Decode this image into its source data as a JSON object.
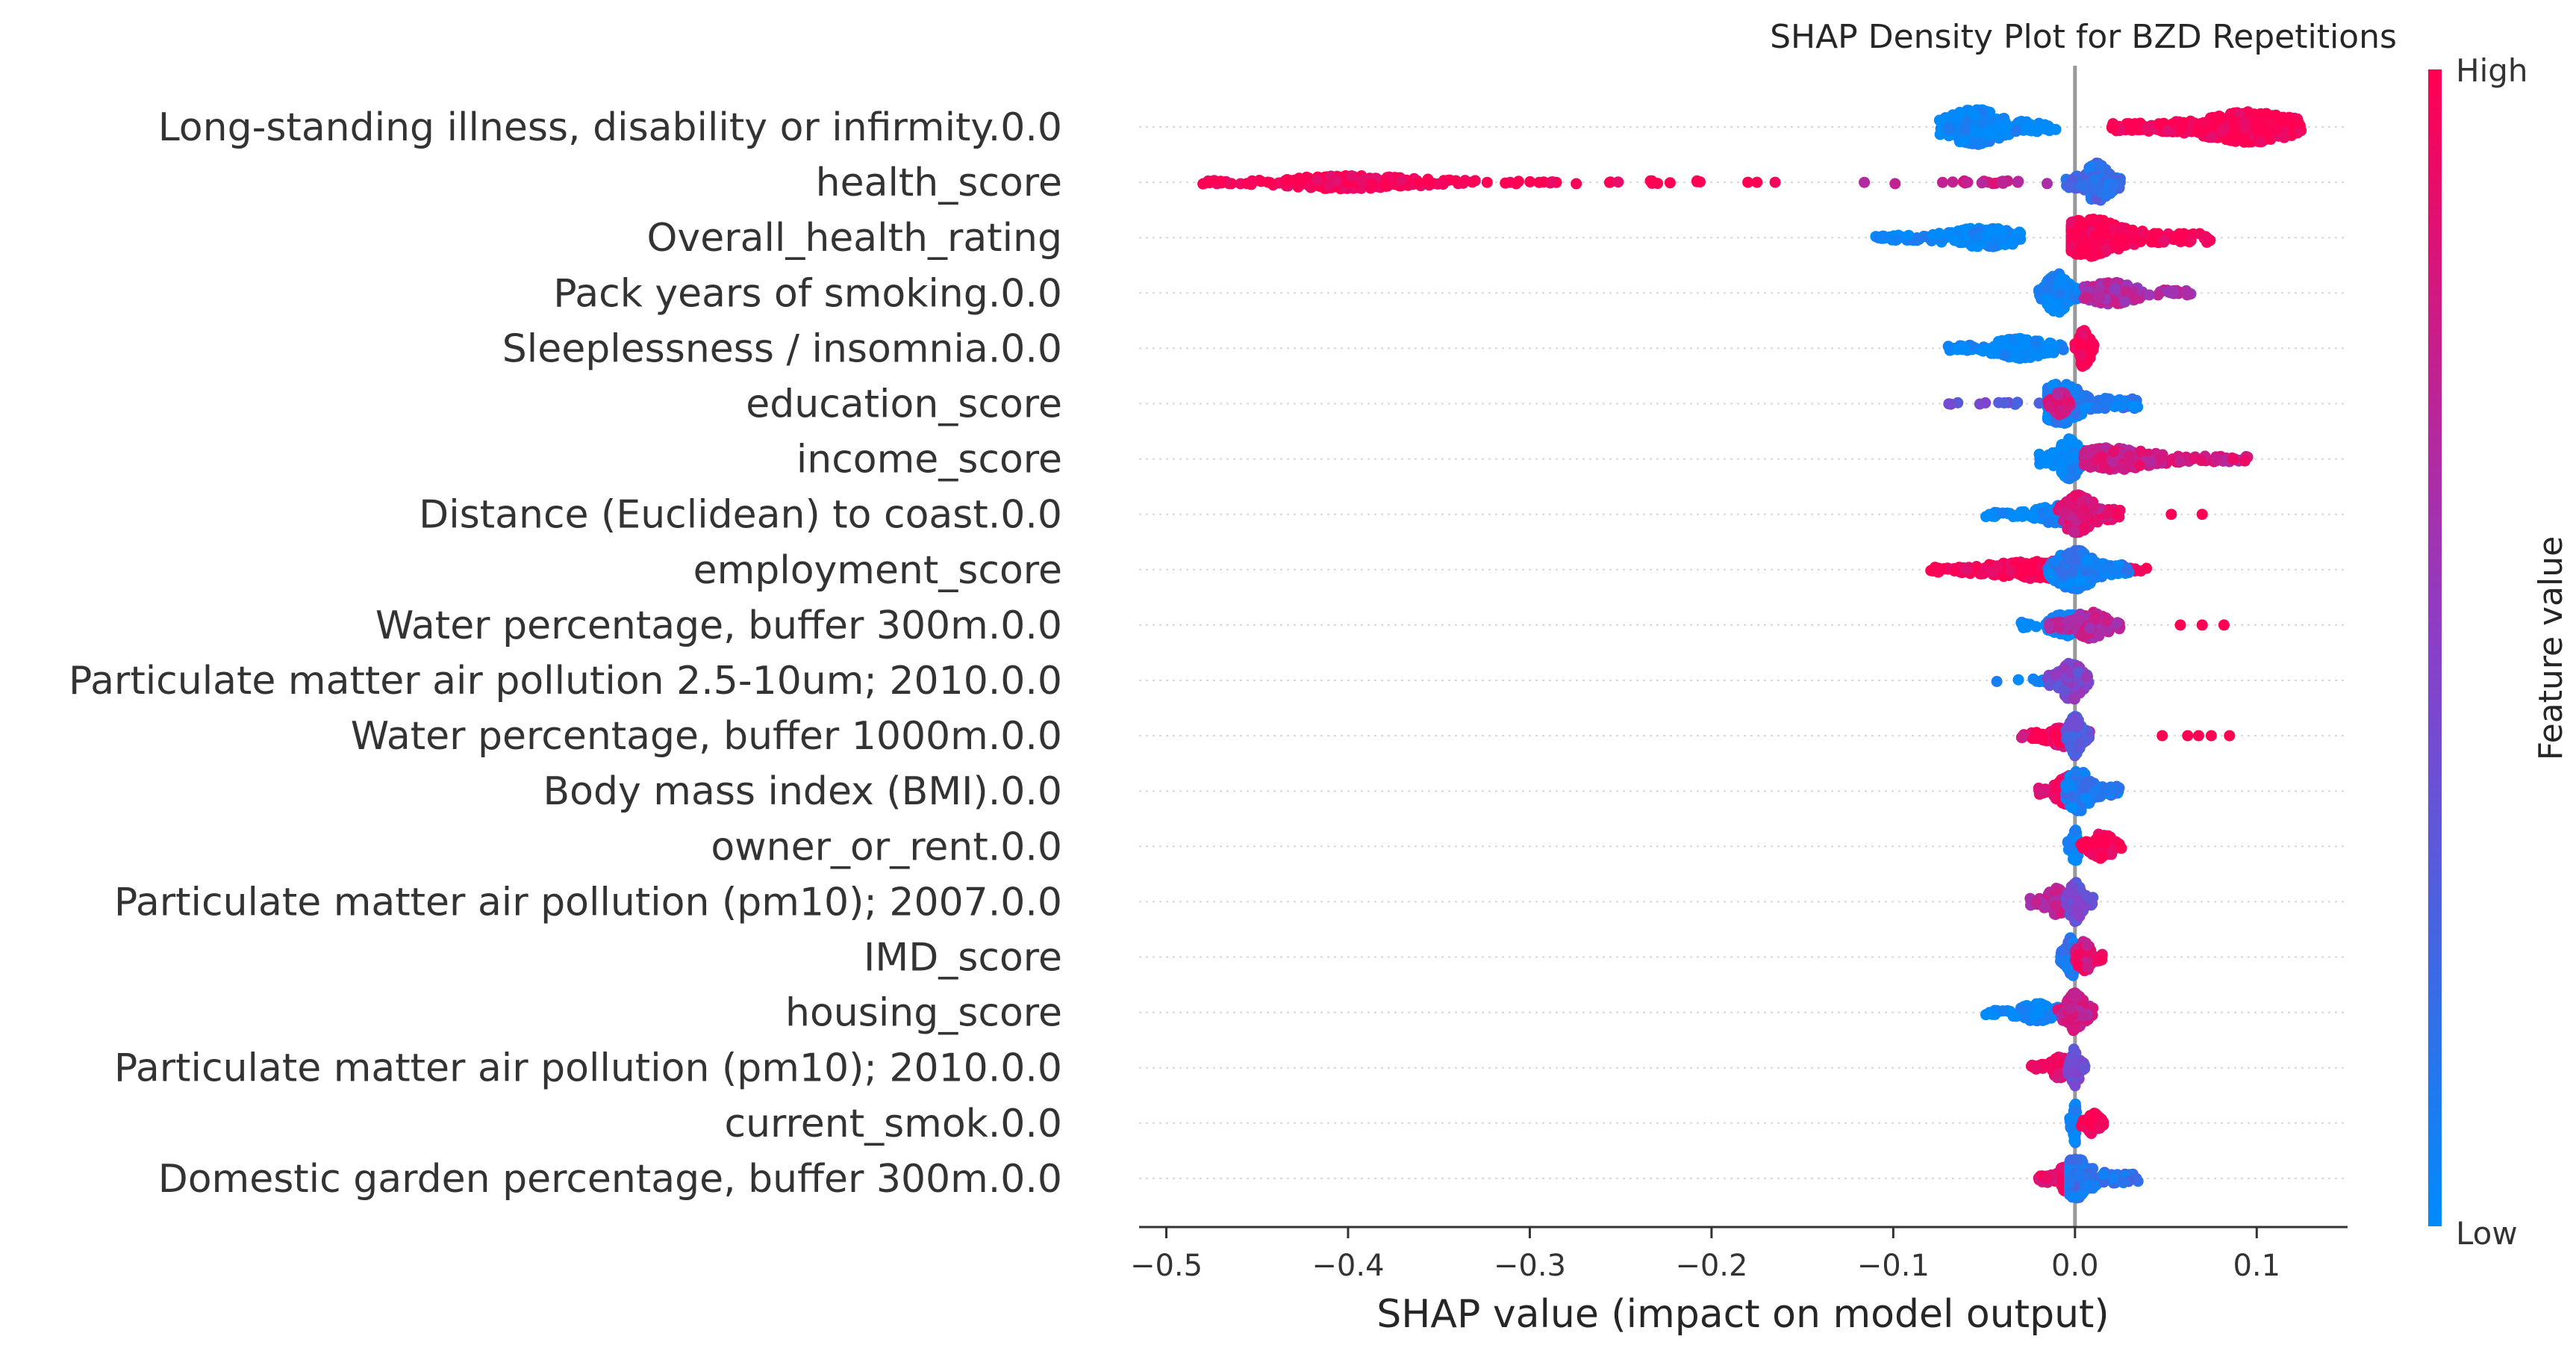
{
  "chart_data": {
    "type": "scatter",
    "subtype": "shap-beeswarm",
    "title": "SHAP Density Plot for BZD Repetitions",
    "xlabel": "SHAP value (impact on model output)",
    "xlim": [
      -0.515,
      0.15
    ],
    "xticks": [
      -0.5,
      -0.4,
      -0.3,
      -0.2,
      -0.1,
      0.0,
      0.1
    ],
    "xtick_labels": [
      "−0.5",
      "−0.4",
      "−0.3",
      "−0.2",
      "−0.1",
      "0.0",
      "0.1"
    ],
    "grid": false,
    "colorbar": {
      "title": "Feature value",
      "high_label": "High",
      "low_label": "Low",
      "low_color": "#008bfb",
      "mid_color": "#8a3fc9",
      "high_color": "#ff0052"
    },
    "features": [
      {
        "name": "Long-standing illness, disability or infirmity.0.0",
        "clusters": [
          {
            "min": -0.075,
            "max": -0.01,
            "center": -0.055,
            "value": 0.0,
            "width": 0.8
          },
          {
            "min": 0.02,
            "max": 0.125,
            "center": 0.095,
            "value": 1.0,
            "width": 0.7
          }
        ]
      },
      {
        "name": "health_score",
        "clusters": [
          {
            "min": -0.005,
            "max": 0.025,
            "center": 0.012,
            "value": 0.2,
            "width": 0.9
          },
          {
            "min": -0.12,
            "max": -0.01,
            "center": -0.05,
            "value": 0.75,
            "width": 0.25,
            "sparse": true
          },
          {
            "min": -0.48,
            "max": -0.33,
            "center": -0.4,
            "value": 1.0,
            "width": 0.3
          },
          {
            "min": -0.33,
            "max": -0.2,
            "center": -0.3,
            "value": 1.0,
            "width": 0.2,
            "sparse": true
          }
        ],
        "points": [
          {
            "x": -0.18,
            "value": 1.0
          },
          {
            "x": -0.175,
            "value": 1.0
          },
          {
            "x": -0.165,
            "value": 0.95
          }
        ]
      },
      {
        "name": "Overall_health_rating",
        "clusters": [
          {
            "min": -0.11,
            "max": -0.03,
            "center": -0.05,
            "value": 0.0,
            "width": 0.45
          },
          {
            "min": -0.002,
            "max": 0.075,
            "center": 0.008,
            "value": 1.0,
            "width": 0.85
          }
        ]
      },
      {
        "name": "Pack years of smoking.0.0",
        "clusters": [
          {
            "min": -0.02,
            "max": 0.005,
            "center": -0.01,
            "value": 0.0,
            "width": 0.9
          },
          {
            "min": 0.005,
            "max": 0.065,
            "center": 0.02,
            "value": 0.65,
            "width": 0.5
          }
        ]
      },
      {
        "name": "Sleeplessness / insomnia.0.0",
        "clusters": [
          {
            "min": -0.07,
            "max": -0.005,
            "center": -0.03,
            "value": 0.0,
            "width": 0.45
          },
          {
            "min": 0.0,
            "max": 0.012,
            "center": 0.005,
            "value": 1.0,
            "width": 0.9
          }
        ]
      },
      {
        "name": "education_score",
        "clusters": [
          {
            "min": -0.075,
            "max": -0.01,
            "center": -0.03,
            "value": 0.35,
            "width": 0.35,
            "sparse": true
          },
          {
            "min": -0.015,
            "max": 0.035,
            "center": -0.008,
            "value": 0.1,
            "width": 0.9
          },
          {
            "min": -0.015,
            "max": -0.002,
            "center": -0.008,
            "value": 0.8,
            "width": 0.6
          }
        ]
      },
      {
        "name": "income_score",
        "clusters": [
          {
            "min": -0.02,
            "max": 0.005,
            "center": -0.003,
            "value": 0.0,
            "width": 0.9
          },
          {
            "min": 0.005,
            "max": 0.095,
            "center": 0.02,
            "value": 0.8,
            "width": 0.5
          }
        ]
      },
      {
        "name": "Distance (Euclidean) to coast.0.0",
        "clusters": [
          {
            "min": -0.05,
            "max": -0.005,
            "center": -0.01,
            "value": 0.0,
            "width": 0.4
          },
          {
            "min": -0.01,
            "max": 0.025,
            "center": 0.002,
            "value": 0.85,
            "width": 0.9
          }
        ],
        "points": [
          {
            "x": 0.053,
            "value": 1.0
          },
          {
            "x": 0.07,
            "value": 1.0
          }
        ]
      },
      {
        "name": "employment_score",
        "clusters": [
          {
            "min": -0.08,
            "max": 0.04,
            "center": -0.02,
            "value": 1.0,
            "width": 0.4
          },
          {
            "min": -0.015,
            "max": 0.03,
            "center": 0.0,
            "value": 0.1,
            "width": 0.9
          }
        ]
      },
      {
        "name": "Water percentage, buffer 300m.0.0",
        "clusters": [
          {
            "min": -0.03,
            "max": 0.01,
            "center": -0.005,
            "value": 0.0,
            "width": 0.5
          },
          {
            "min": -0.015,
            "max": 0.025,
            "center": 0.008,
            "value": 0.7,
            "width": 0.6
          }
        ],
        "points": [
          {
            "x": 0.058,
            "value": 1.0
          },
          {
            "x": 0.07,
            "value": 1.0
          },
          {
            "x": 0.082,
            "value": 1.0
          }
        ]
      },
      {
        "name": "Particulate matter air pollution 2.5-10um; 2010.0.0",
        "clusters": [
          {
            "min": -0.045,
            "max": -0.01,
            "center": -0.02,
            "value": 0.0,
            "width": 0.25,
            "sparse": true
          },
          {
            "min": -0.015,
            "max": 0.008,
            "center": -0.002,
            "value": 0.45,
            "width": 0.9
          }
        ]
      },
      {
        "name": "Water percentage, buffer 1000m.0.0",
        "clusters": [
          {
            "min": -0.03,
            "max": 0.01,
            "center": -0.005,
            "value": 0.9,
            "width": 0.5
          },
          {
            "min": -0.005,
            "max": 0.008,
            "center": 0.0,
            "value": 0.3,
            "width": 0.9
          }
        ],
        "points": [
          {
            "x": 0.048,
            "value": 1.0
          },
          {
            "x": 0.062,
            "value": 1.0
          },
          {
            "x": 0.068,
            "value": 1.0
          },
          {
            "x": 0.075,
            "value": 1.0
          },
          {
            "x": 0.085,
            "value": 1.0
          }
        ]
      },
      {
        "name": "Body mass index (BMI).0.0",
        "clusters": [
          {
            "min": -0.02,
            "max": 0.008,
            "center": -0.003,
            "value": 0.9,
            "width": 0.7
          },
          {
            "min": -0.005,
            "max": 0.025,
            "center": 0.002,
            "value": 0.1,
            "width": 0.9
          }
        ]
      },
      {
        "name": "owner_or_rent.0.0",
        "clusters": [
          {
            "min": -0.004,
            "max": 0.002,
            "center": 0.0,
            "value": 0.0,
            "width": 0.9
          },
          {
            "min": 0.003,
            "max": 0.027,
            "center": 0.015,
            "value": 1.0,
            "width": 0.6
          }
        ]
      },
      {
        "name": "Particulate matter air pollution (pm10); 2007.0.0",
        "clusters": [
          {
            "min": -0.025,
            "max": 0.0,
            "center": -0.01,
            "value": 0.7,
            "width": 0.6
          },
          {
            "min": -0.005,
            "max": 0.01,
            "center": 0.0,
            "value": 0.4,
            "width": 0.9
          }
        ]
      },
      {
        "name": "IMD_score",
        "clusters": [
          {
            "min": -0.008,
            "max": 0.004,
            "center": -0.002,
            "value": 0.15,
            "width": 0.9
          },
          {
            "min": 0.0,
            "max": 0.015,
            "center": 0.005,
            "value": 0.85,
            "width": 0.7
          }
        ]
      },
      {
        "name": "housing_score",
        "clusters": [
          {
            "min": -0.05,
            "max": -0.005,
            "center": -0.02,
            "value": 0.0,
            "width": 0.4
          },
          {
            "min": -0.01,
            "max": 0.01,
            "center": 0.0,
            "value": 0.75,
            "width": 0.9
          }
        ]
      },
      {
        "name": "Particulate matter air pollution (pm10); 2010.0.0",
        "clusters": [
          {
            "min": -0.025,
            "max": 0.0,
            "center": -0.008,
            "value": 0.9,
            "width": 0.5
          },
          {
            "min": -0.004,
            "max": 0.006,
            "center": 0.0,
            "value": 0.4,
            "width": 0.9
          }
        ]
      },
      {
        "name": "current_smok.0.0",
        "clusters": [
          {
            "min": -0.003,
            "max": 0.001,
            "center": 0.0,
            "value": 0.0,
            "width": 0.9
          },
          {
            "min": 0.003,
            "max": 0.016,
            "center": 0.01,
            "value": 1.0,
            "width": 0.5
          }
        ]
      },
      {
        "name": "Domestic garden percentage, buffer 300m.0.0",
        "clusters": [
          {
            "min": -0.02,
            "max": 0.003,
            "center": -0.005,
            "value": 0.9,
            "width": 0.6
          },
          {
            "min": -0.003,
            "max": 0.035,
            "center": 0.0,
            "value": 0.15,
            "width": 0.9
          }
        ]
      }
    ]
  }
}
